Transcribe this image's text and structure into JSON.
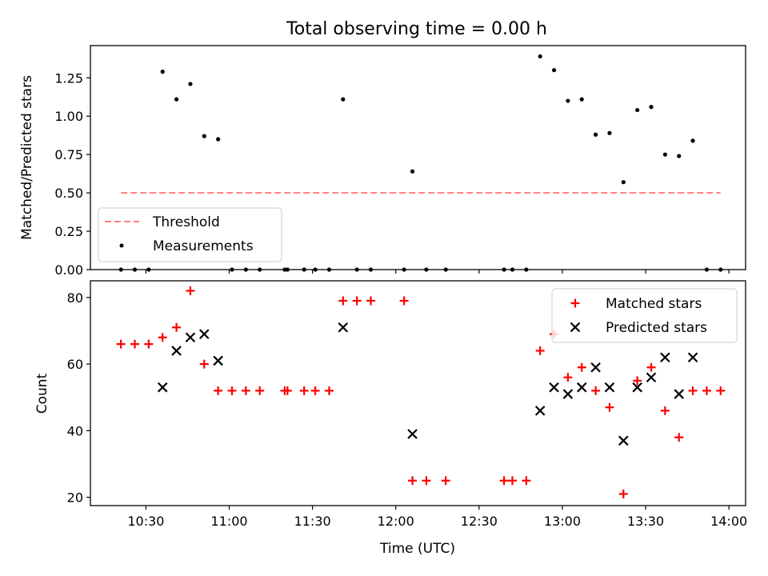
{
  "title": "Total observing time = 0.00 h",
  "top": {
    "ylabel": "Matched/Predicted stars",
    "ylim": [
      0,
      1.46
    ],
    "yticks": [
      "0.00",
      "0.25",
      "0.50",
      "0.75",
      "1.00",
      "1.25"
    ],
    "legend": {
      "threshold": "Threshold",
      "measurements": "Measurements"
    }
  },
  "bottom": {
    "ylabel": "Count",
    "ylim": [
      17.5,
      85
    ],
    "yticks": [
      "20",
      "40",
      "60",
      "80"
    ],
    "legend": {
      "matched": "Matched stars",
      "predicted": "Predicted stars"
    }
  },
  "xlabel": "Time (UTC)",
  "xticks": [
    "10:30",
    "11:00",
    "11:30",
    "12:00",
    "12:30",
    "13:00",
    "13:30",
    "14:00"
  ],
  "colors": {
    "threshold": "#ff7f7f",
    "measurements": "#000000",
    "matched": "#ff0000",
    "predicted": "#000000"
  },
  "chart_data": [
    {
      "type": "scatter",
      "panel": "top",
      "xlim": [
        "10:10",
        "14:06"
      ],
      "ylim": [
        0,
        1.46
      ],
      "threshold": {
        "value": 0.5,
        "x_start": "10:21",
        "x_end": "13:57"
      },
      "series": [
        {
          "name": "Measurements",
          "points": [
            {
              "x": "10:21",
              "y": 0
            },
            {
              "x": "10:26",
              "y": 0
            },
            {
              "x": "10:31",
              "y": 0
            },
            {
              "x": "10:36",
              "y": 1.29
            },
            {
              "x": "10:41",
              "y": 1.11
            },
            {
              "x": "10:46",
              "y": 1.21
            },
            {
              "x": "10:51",
              "y": 0.87
            },
            {
              "x": "10:56",
              "y": 0.85
            },
            {
              "x": "11:01",
              "y": 0
            },
            {
              "x": "11:06",
              "y": 0
            },
            {
              "x": "11:11",
              "y": 0
            },
            {
              "x": "11:20",
              "y": 0
            },
            {
              "x": "11:21",
              "y": 0
            },
            {
              "x": "11:27",
              "y": 0
            },
            {
              "x": "11:31",
              "y": 0
            },
            {
              "x": "11:36",
              "y": 0
            },
            {
              "x": "11:41",
              "y": 1.11
            },
            {
              "x": "11:46",
              "y": 0
            },
            {
              "x": "11:51",
              "y": 0
            },
            {
              "x": "12:03",
              "y": 0
            },
            {
              "x": "12:06",
              "y": 0.64
            },
            {
              "x": "12:11",
              "y": 0
            },
            {
              "x": "12:18",
              "y": 0
            },
            {
              "x": "12:39",
              "y": 0
            },
            {
              "x": "12:42",
              "y": 0
            },
            {
              "x": "12:47",
              "y": 0
            },
            {
              "x": "12:52",
              "y": 1.39
            },
            {
              "x": "12:57",
              "y": 1.3
            },
            {
              "x": "13:02",
              "y": 1.1
            },
            {
              "x": "13:07",
              "y": 1.11
            },
            {
              "x": "13:12",
              "y": 0.88
            },
            {
              "x": "13:17",
              "y": 0.89
            },
            {
              "x": "13:22",
              "y": 0.57
            },
            {
              "x": "13:27",
              "y": 1.04
            },
            {
              "x": "13:32",
              "y": 1.06
            },
            {
              "x": "13:37",
              "y": 0.75
            },
            {
              "x": "13:42",
              "y": 0.74
            },
            {
              "x": "13:47",
              "y": 0.84
            },
            {
              "x": "13:52",
              "y": 0
            },
            {
              "x": "13:57",
              "y": 0
            }
          ]
        }
      ]
    },
    {
      "type": "scatter",
      "panel": "bottom",
      "xlim": [
        "10:10",
        "14:06"
      ],
      "ylim": [
        17.5,
        85
      ],
      "series": [
        {
          "name": "Matched stars",
          "marker": "+",
          "points": [
            {
              "x": "10:21",
              "y": 66
            },
            {
              "x": "10:26",
              "y": 66
            },
            {
              "x": "10:31",
              "y": 66
            },
            {
              "x": "10:36",
              "y": 68
            },
            {
              "x": "10:41",
              "y": 71
            },
            {
              "x": "10:46",
              "y": 82
            },
            {
              "x": "10:51",
              "y": 60
            },
            {
              "x": "10:56",
              "y": 52
            },
            {
              "x": "11:01",
              "y": 52
            },
            {
              "x": "11:06",
              "y": 52
            },
            {
              "x": "11:11",
              "y": 52
            },
            {
              "x": "11:20",
              "y": 52
            },
            {
              "x": "11:21",
              "y": 52
            },
            {
              "x": "11:27",
              "y": 52
            },
            {
              "x": "11:31",
              "y": 52
            },
            {
              "x": "11:36",
              "y": 52
            },
            {
              "x": "11:41",
              "y": 79
            },
            {
              "x": "11:46",
              "y": 79
            },
            {
              "x": "11:51",
              "y": 79
            },
            {
              "x": "12:03",
              "y": 79
            },
            {
              "x": "12:06",
              "y": 25
            },
            {
              "x": "12:11",
              "y": 25
            },
            {
              "x": "12:18",
              "y": 25
            },
            {
              "x": "12:39",
              "y": 25
            },
            {
              "x": "12:42",
              "y": 25
            },
            {
              "x": "12:47",
              "y": 25
            },
            {
              "x": "12:52",
              "y": 64
            },
            {
              "x": "12:57",
              "y": 69
            },
            {
              "x": "13:02",
              "y": 56
            },
            {
              "x": "13:07",
              "y": 59
            },
            {
              "x": "13:12",
              "y": 52
            },
            {
              "x": "13:17",
              "y": 47
            },
            {
              "x": "13:22",
              "y": 21
            },
            {
              "x": "13:27",
              "y": 55
            },
            {
              "x": "13:32",
              "y": 59
            },
            {
              "x": "13:37",
              "y": 46
            },
            {
              "x": "13:42",
              "y": 38
            },
            {
              "x": "13:47",
              "y": 52
            },
            {
              "x": "13:52",
              "y": 52
            },
            {
              "x": "13:57",
              "y": 52
            }
          ]
        },
        {
          "name": "Predicted stars",
          "marker": "x",
          "points": [
            {
              "x": "10:36",
              "y": 53
            },
            {
              "x": "10:41",
              "y": 64
            },
            {
              "x": "10:46",
              "y": 68
            },
            {
              "x": "10:51",
              "y": 69
            },
            {
              "x": "10:56",
              "y": 61
            },
            {
              "x": "11:41",
              "y": 71
            },
            {
              "x": "12:06",
              "y": 39
            },
            {
              "x": "12:52",
              "y": 46
            },
            {
              "x": "12:57",
              "y": 53
            },
            {
              "x": "13:02",
              "y": 51
            },
            {
              "x": "13:07",
              "y": 53
            },
            {
              "x": "13:12",
              "y": 59
            },
            {
              "x": "13:17",
              "y": 53
            },
            {
              "x": "13:22",
              "y": 37
            },
            {
              "x": "13:27",
              "y": 53
            },
            {
              "x": "13:32",
              "y": 56
            },
            {
              "x": "13:37",
              "y": 62
            },
            {
              "x": "13:42",
              "y": 51
            },
            {
              "x": "13:47",
              "y": 62
            }
          ]
        }
      ]
    }
  ]
}
